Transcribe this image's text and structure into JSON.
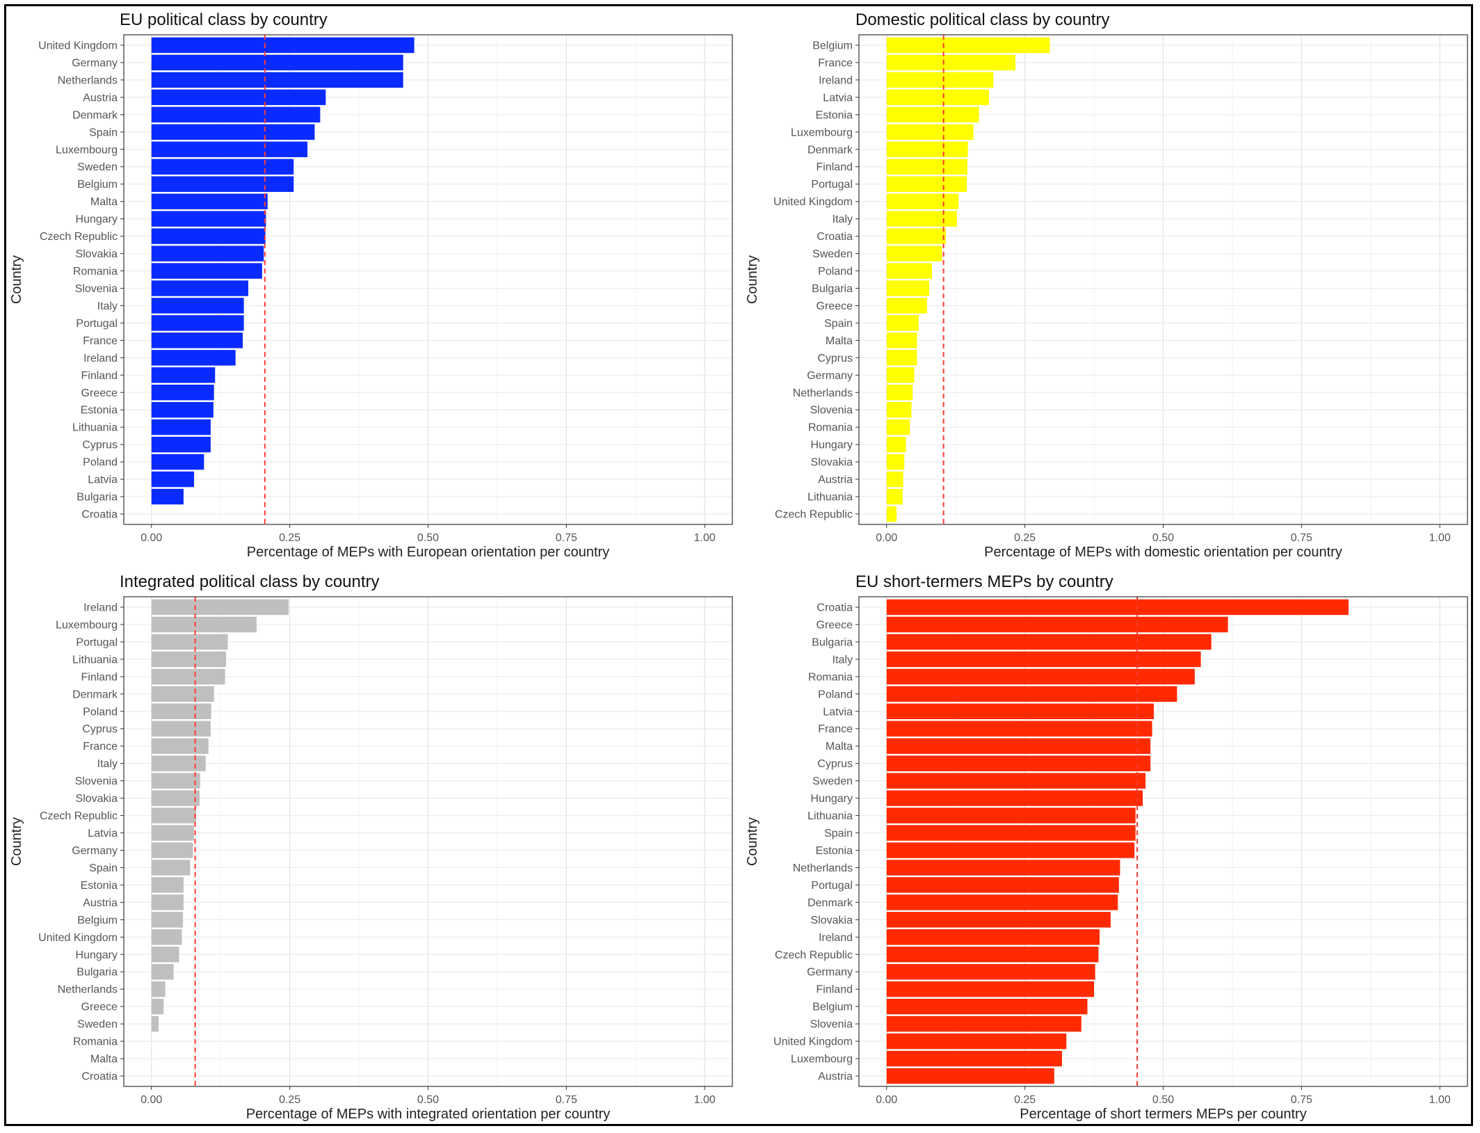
{
  "chart_data": [
    {
      "type": "bar",
      "orientation": "horizontal",
      "title": "EU political class by country",
      "xlabel": "Percentage of MEPs with European orientation per country",
      "ylabel": "Country",
      "xlim": [
        0,
        1
      ],
      "xticks": [
        "0.00",
        "0.25",
        "0.50",
        "0.75",
        "1.00"
      ],
      "reference_line": 0.205,
      "color": "#0a2bff",
      "categories": [
        "United Kingdom",
        "Germany",
        "Netherlands",
        "Austria",
        "Denmark",
        "Spain",
        "Luxembourg",
        "Sweden",
        "Belgium",
        "Malta",
        "Hungary",
        "Czech Republic",
        "Slovakia",
        "Romania",
        "Slovenia",
        "Italy",
        "Portugal",
        "France",
        "Ireland",
        "Finland",
        "Greece",
        "Estonia",
        "Lithuania",
        "Cyprus",
        "Poland",
        "Latvia",
        "Bulgaria",
        "Croatia"
      ],
      "values": [
        0.475,
        0.455,
        0.455,
        0.315,
        0.305,
        0.295,
        0.282,
        0.257,
        0.257,
        0.21,
        0.207,
        0.206,
        0.203,
        0.2,
        0.175,
        0.167,
        0.167,
        0.165,
        0.152,
        0.115,
        0.113,
        0.112,
        0.107,
        0.107,
        0.095,
        0.077,
        0.058,
        0.0
      ]
    },
    {
      "type": "bar",
      "orientation": "horizontal",
      "title": "Domestic political class by country",
      "xlabel": "Percentage of MEPs with domestic orientation per country",
      "ylabel": "Country",
      "xlim": [
        0,
        1
      ],
      "xticks": [
        "0.00",
        "0.25",
        "0.50",
        "0.75",
        "1.00"
      ],
      "reference_line": 0.103,
      "color": "#ffff00",
      "categories": [
        "Belgium",
        "France",
        "Ireland",
        "Latvia",
        "Estonia",
        "Luxembourg",
        "Denmark",
        "Finland",
        "Portugal",
        "United Kingdom",
        "Italy",
        "Croatia",
        "Sweden",
        "Poland",
        "Bulgaria",
        "Greece",
        "Spain",
        "Malta",
        "Cyprus",
        "Germany",
        "Netherlands",
        "Slovenia",
        "Romania",
        "Hungary",
        "Slovakia",
        "Austria",
        "Lithuania",
        "Czech Republic"
      ],
      "values": [
        0.295,
        0.233,
        0.193,
        0.185,
        0.167,
        0.157,
        0.147,
        0.146,
        0.145,
        0.13,
        0.127,
        0.107,
        0.1,
        0.082,
        0.077,
        0.073,
        0.058,
        0.055,
        0.055,
        0.05,
        0.047,
        0.045,
        0.042,
        0.035,
        0.032,
        0.03,
        0.029,
        0.018
      ]
    },
    {
      "type": "bar",
      "orientation": "horizontal",
      "title": "Integrated political class by country",
      "xlabel": "Percentage of MEPs with integrated orientation per country",
      "ylabel": "Country",
      "xlim": [
        0,
        1
      ],
      "xticks": [
        "0.00",
        "0.25",
        "0.50",
        "0.75",
        "1.00"
      ],
      "reference_line": 0.079,
      "color": "#bfbfbf",
      "categories": [
        "Ireland",
        "Luxembourg",
        "Portugal",
        "Lithuania",
        "Finland",
        "Denmark",
        "Poland",
        "Cyprus",
        "France",
        "Italy",
        "Slovenia",
        "Slovakia",
        "Czech Republic",
        "Latvia",
        "Germany",
        "Spain",
        "Estonia",
        "Austria",
        "Belgium",
        "United Kingdom",
        "Hungary",
        "Bulgaria",
        "Netherlands",
        "Greece",
        "Sweden",
        "Romania",
        "Malta",
        "Croatia"
      ],
      "values": [
        0.248,
        0.19,
        0.138,
        0.135,
        0.133,
        0.113,
        0.108,
        0.107,
        0.103,
        0.098,
        0.088,
        0.087,
        0.081,
        0.077,
        0.075,
        0.07,
        0.058,
        0.058,
        0.057,
        0.055,
        0.05,
        0.04,
        0.025,
        0.022,
        0.013,
        0.0,
        0.0,
        0.0
      ]
    },
    {
      "type": "bar",
      "orientation": "horizontal",
      "title": "EU short-termers MEPs by country",
      "xlabel": "Percentage of short termers MEPs per country",
      "ylabel": "Country",
      "xlim": [
        0,
        1
      ],
      "xticks": [
        "0.00",
        "0.25",
        "0.50",
        "0.75",
        "1.00"
      ],
      "reference_line": 0.453,
      "color": "#ff2a00",
      "categories": [
        "Croatia",
        "Greece",
        "Bulgaria",
        "Italy",
        "Romania",
        "Poland",
        "Latvia",
        "France",
        "Malta",
        "Cyprus",
        "Sweden",
        "Hungary",
        "Lithuania",
        "Spain",
        "Estonia",
        "Netherlands",
        "Portugal",
        "Denmark",
        "Slovakia",
        "Ireland",
        "Czech Republic",
        "Germany",
        "Finland",
        "Belgium",
        "Slovenia",
        "United Kingdom",
        "Luxembourg",
        "Austria"
      ],
      "values": [
        0.835,
        0.617,
        0.587,
        0.568,
        0.557,
        0.525,
        0.483,
        0.48,
        0.477,
        0.477,
        0.468,
        0.463,
        0.45,
        0.45,
        0.448,
        0.422,
        0.42,
        0.418,
        0.405,
        0.385,
        0.383,
        0.377,
        0.375,
        0.363,
        0.352,
        0.325,
        0.317,
        0.303
      ]
    }
  ]
}
